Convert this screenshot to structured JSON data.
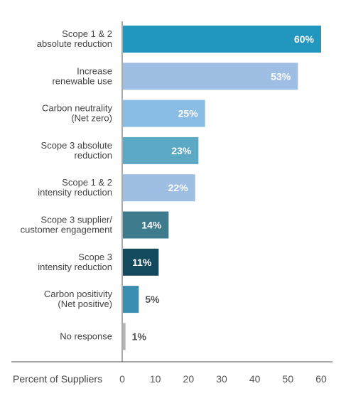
{
  "chart_data": {
    "type": "bar",
    "orientation": "horizontal",
    "title": "",
    "xlabel": "Percent of Suppliers",
    "ylabel": "",
    "xlim": [
      0,
      60
    ],
    "xticks": [
      "0",
      "10",
      "20",
      "30",
      "40",
      "50",
      "60"
    ],
    "grid": false,
    "legend": "none",
    "categories": [
      [
        "Scope 1 & 2",
        "absolute reduction"
      ],
      [
        "Increase",
        "renewable use"
      ],
      [
        "Carbon neutrality",
        "(Net zero)"
      ],
      [
        "Scope 3 absolute",
        "reduction"
      ],
      [
        "Scope 1 & 2",
        "intensity reduction"
      ],
      [
        "Scope 3 supplier/",
        "customer engagement"
      ],
      [
        "Scope 3",
        "intensity reduction"
      ],
      [
        "Carbon positivity",
        "(Net positive)"
      ],
      [
        "No response"
      ]
    ],
    "values": [
      60,
      53,
      25,
      23,
      22,
      14,
      11,
      5,
      1
    ],
    "value_labels": [
      "60%",
      "53%",
      "25%",
      "23%",
      "22%",
      "14%",
      "11%",
      "5%",
      "1%"
    ],
    "colors": [
      "#2196bf",
      "#9ebfe3",
      "#89bde6",
      "#5ba9c4",
      "#9ebfe3",
      "#3e7b8c",
      "#144a5e",
      "#3a8fb0",
      "#b5b5b5"
    ],
    "label_colors": [
      "#ffffff",
      "#ffffff",
      "#ffffff",
      "#ffffff",
      "#ffffff",
      "#ffffff",
      "#ffffff",
      "#555555",
      "#555555"
    ],
    "axis_color": "#555555"
  }
}
